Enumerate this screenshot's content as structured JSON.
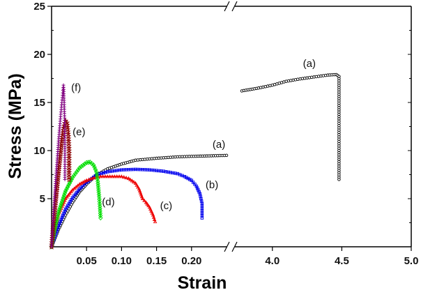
{
  "chart_data": {
    "type": "scatter",
    "xlabel": "Strain",
    "ylabel": "Stress (MPa)",
    "ylim": [
      0,
      25
    ],
    "yticks": [
      "5",
      "10",
      "15",
      "20",
      "25"
    ],
    "x_axis_broken": true,
    "xlim_segments": [
      [
        0,
        0.25
      ],
      [
        3.73,
        5.0
      ]
    ],
    "xticks": [
      "0.05",
      "0.10",
      "0.15",
      "0.20",
      "4.0",
      "4.5",
      "5.0"
    ],
    "grid": false,
    "series": [
      {
        "label": "(a)",
        "color": "#000000",
        "marker": "circle",
        "x": [
          0,
          0.01,
          0.02,
          0.03,
          0.04,
          0.05,
          0.065,
          0.08,
          0.1,
          0.12,
          0.15,
          0.18,
          0.2,
          0.225,
          0.25,
          3.78,
          3.9,
          4.0,
          4.1,
          4.2,
          4.3,
          4.4,
          4.46,
          4.48,
          4.48,
          4.48,
          4.48
        ],
        "y": [
          0,
          1.8,
          3.3,
          4.6,
          5.7,
          6.5,
          7.5,
          8.1,
          8.6,
          9.0,
          9.2,
          9.35,
          9.4,
          9.45,
          9.5,
          16.2,
          16.5,
          16.8,
          17.2,
          17.45,
          17.65,
          17.85,
          17.9,
          17.7,
          14,
          10,
          7
        ]
      },
      {
        "label": "(b)",
        "color": "#0000ee",
        "marker": "square",
        "x": [
          0,
          0.01,
          0.02,
          0.03,
          0.04,
          0.05,
          0.065,
          0.08,
          0.1,
          0.12,
          0.14,
          0.16,
          0.18,
          0.19,
          0.2,
          0.207,
          0.212,
          0.215,
          0.215
        ],
        "y": [
          0,
          2.2,
          3.9,
          5.1,
          6.0,
          6.7,
          7.5,
          7.8,
          8.0,
          8.05,
          8.0,
          7.85,
          7.6,
          7.3,
          6.9,
          6.3,
          5.5,
          4.5,
          3.0
        ]
      },
      {
        "label": "(c)",
        "color": "#ee0000",
        "marker": "triangle",
        "x": [
          0,
          0.005,
          0.01,
          0.02,
          0.03,
          0.04,
          0.05,
          0.06,
          0.07,
          0.08,
          0.1,
          0.11,
          0.12,
          0.125,
          0.13,
          0.135,
          0.14,
          0.145,
          0.148
        ],
        "y": [
          0,
          2.0,
          3.4,
          5.0,
          5.9,
          6.5,
          6.9,
          7.15,
          7.3,
          7.3,
          7.3,
          7.1,
          6.6,
          6.0,
          5.0,
          4.6,
          4.1,
          3.3,
          2.6
        ]
      },
      {
        "label": "(d)",
        "color": "#00dd00",
        "marker": "diamond",
        "x": [
          0,
          0.005,
          0.01,
          0.02,
          0.03,
          0.04,
          0.05,
          0.055,
          0.06,
          0.064,
          0.066,
          0.068,
          0.069,
          0.07
        ],
        "y": [
          0,
          2.0,
          3.6,
          5.8,
          7.2,
          8.2,
          8.75,
          8.8,
          8.5,
          7.8,
          6.8,
          5.2,
          4.2,
          3.0
        ]
      },
      {
        "label": "(e)",
        "color": "#8b0000",
        "marker": "star",
        "x": [
          0,
          0.003,
          0.006,
          0.009,
          0.012,
          0.015,
          0.018,
          0.02,
          0.022,
          0.024,
          0.025,
          0.025,
          0.025
        ],
        "y": [
          0,
          2.5,
          4.8,
          7.0,
          9.2,
          11.2,
          12.6,
          13.1,
          12.9,
          11.5,
          10.0,
          8.5,
          7.0
        ]
      },
      {
        "label": "(f)",
        "color": "#800080",
        "marker": "plus",
        "x": [
          0,
          0.002,
          0.004,
          0.006,
          0.008,
          0.01,
          0.012,
          0.014,
          0.016,
          0.017,
          0.018,
          0.019,
          0.019,
          0.019
        ],
        "y": [
          0,
          2.5,
          4.8,
          7.0,
          9.0,
          11.0,
          12.8,
          14.5,
          16.0,
          16.8,
          15.0,
          12.0,
          9.5,
          7.0
        ]
      }
    ],
    "annotations": [
      {
        "text": "(a)",
        "x": 0.23,
        "y": 10.3
      },
      {
        "text": "(a)",
        "x": 4.22,
        "y": 18.7
      },
      {
        "text": "(b)",
        "x": 0.22,
        "y": 6.1
      },
      {
        "text": "(c)",
        "x": 0.155,
        "y": 3.9
      },
      {
        "text": "(d)",
        "x": 0.072,
        "y": 4.3
      },
      {
        "text": "(e)",
        "x": 0.03,
        "y": 11.6
      },
      {
        "text": "(f)",
        "x": 0.028,
        "y": 16.2
      }
    ]
  }
}
